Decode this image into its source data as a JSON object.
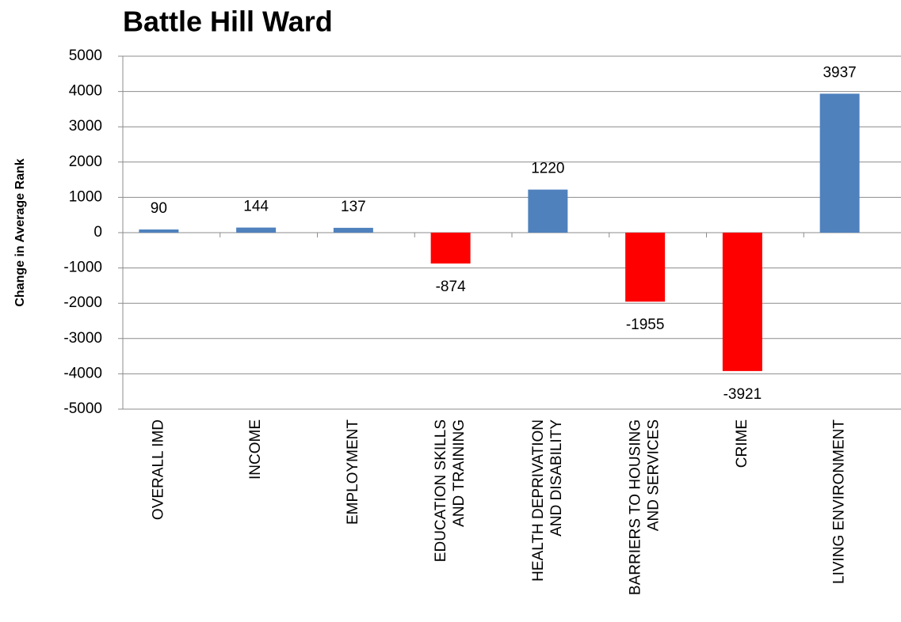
{
  "chart_data": {
    "type": "bar",
    "title": "Battle Hill Ward",
    "ylabel": "Change in Average Rank",
    "categories": [
      "OVERALL IMD",
      "INCOME",
      "EMPLOYMENT",
      "EDUCATION SKILLS\nAND TRAINING",
      "HEALTH DEPRIVATION\nAND DISABILITY",
      "BARRIERS TO HOUSING\nAND SERVICES",
      "CRIME",
      "LIVING ENVIRONMENT"
    ],
    "values": [
      90,
      144,
      137,
      -874,
      1220,
      -1955,
      -3921,
      3937
    ],
    "colors": [
      "#4f81bd",
      "#4f81bd",
      "#4f81bd",
      "#ff0000",
      "#4f81bd",
      "#ff0000",
      "#ff0000",
      "#4f81bd"
    ],
    "ylim": [
      -5000,
      5000
    ],
    "yticks": [
      -5000,
      -4000,
      -3000,
      -2000,
      -1000,
      0,
      1000,
      2000,
      3000,
      4000,
      5000
    ],
    "grid": true
  }
}
